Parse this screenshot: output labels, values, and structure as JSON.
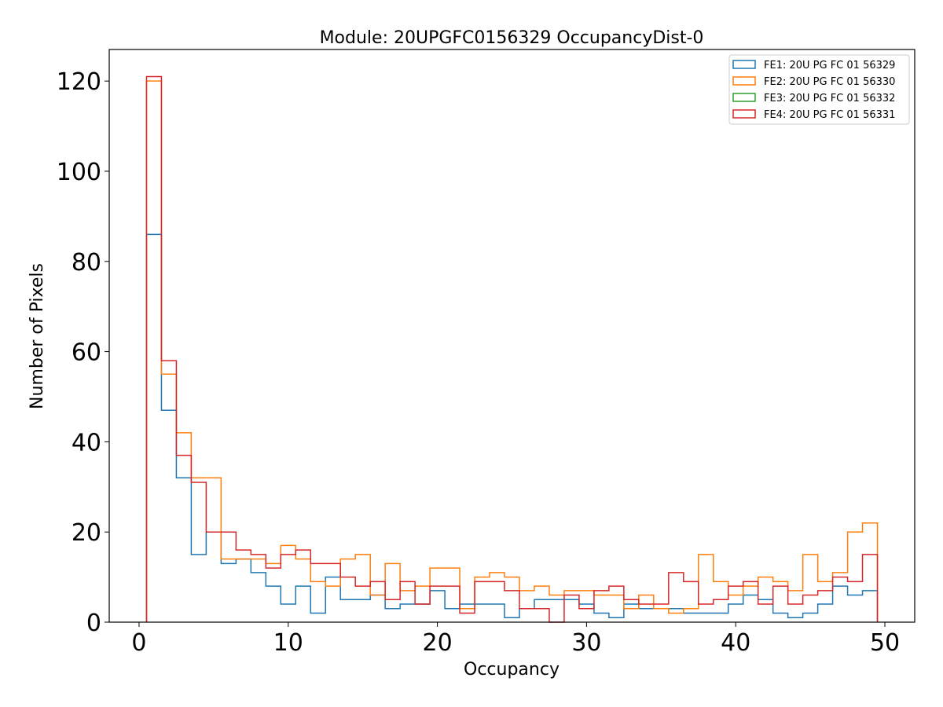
{
  "chart_data": {
    "type": "step-histogram",
    "title": "Module: 20UPGFC0156329 OccupancyDist-0",
    "xlabel": "Occupancy",
    "ylabel": "Number of Pixels",
    "xlim": [
      -2,
      52
    ],
    "ylim": [
      0,
      127
    ],
    "x_ticks": [
      0,
      10,
      20,
      30,
      40,
      50
    ],
    "y_ticks": [
      0,
      20,
      40,
      60,
      80,
      100,
      120
    ],
    "bin_edges": [
      0.5,
      1.5,
      2.5,
      3.5,
      4.5,
      5.5,
      6.5,
      7.5,
      8.5,
      9.5,
      10.5,
      11.5,
      12.5,
      13.5,
      14.5,
      15.5,
      16.5,
      17.5,
      18.5,
      19.5,
      20.5,
      21.5,
      22.5,
      23.5,
      24.5,
      25.5,
      26.5,
      27.5,
      28.5,
      29.5,
      30.5,
      31.5,
      32.5,
      33.5,
      34.5,
      35.5,
      36.5,
      37.5,
      38.5,
      39.5,
      40.5,
      41.5,
      42.5,
      43.5,
      44.5,
      45.5,
      46.5,
      47.5,
      48.5,
      49.5
    ],
    "legend_position": "top-right",
    "series": [
      {
        "name": "FE1: 20U PG FC 01 56329",
        "color": "#1f77b4",
        "values": [
          86,
          47,
          32,
          15,
          20,
          13,
          14,
          11,
          8,
          4,
          8,
          2,
          10,
          5,
          5,
          6,
          3,
          4,
          4,
          7,
          3,
          4,
          4,
          4,
          1,
          3,
          5,
          5,
          5,
          4,
          2,
          1,
          4,
          3,
          3,
          3,
          2,
          2,
          2,
          4,
          6,
          5,
          2,
          1,
          2,
          4,
          8,
          6,
          7
        ]
      },
      {
        "name": "FE2: 20U PG FC 01 56330",
        "color": "#ff7f0e",
        "values": [
          120,
          55,
          42,
          32,
          32,
          14,
          14,
          14,
          13,
          17,
          14,
          9,
          8,
          14,
          15,
          6,
          13,
          7,
          8,
          12,
          12,
          3,
          10,
          11,
          10,
          7,
          8,
          6,
          7,
          7,
          6,
          6,
          3,
          6,
          3,
          2,
          3,
          15,
          9,
          6,
          8,
          10,
          9,
          7,
          15,
          9,
          11,
          20,
          22
        ]
      },
      {
        "name": "FE3: 20U PG FC 01 56332",
        "color": "#2ca02c",
        "values": []
      },
      {
        "name": "FE4: 20U PG FC 01 56331",
        "color": "#d62728",
        "values": [
          121,
          58,
          37,
          31,
          20,
          20,
          16,
          15,
          12,
          15,
          16,
          13,
          13,
          10,
          8,
          9,
          5,
          9,
          4,
          8,
          8,
          2,
          9,
          9,
          7,
          3,
          3,
          0,
          6,
          3,
          7,
          8,
          5,
          4,
          4,
          11,
          9,
          4,
          5,
          8,
          9,
          4,
          8,
          4,
          6,
          7,
          10,
          9,
          15
        ]
      }
    ]
  }
}
